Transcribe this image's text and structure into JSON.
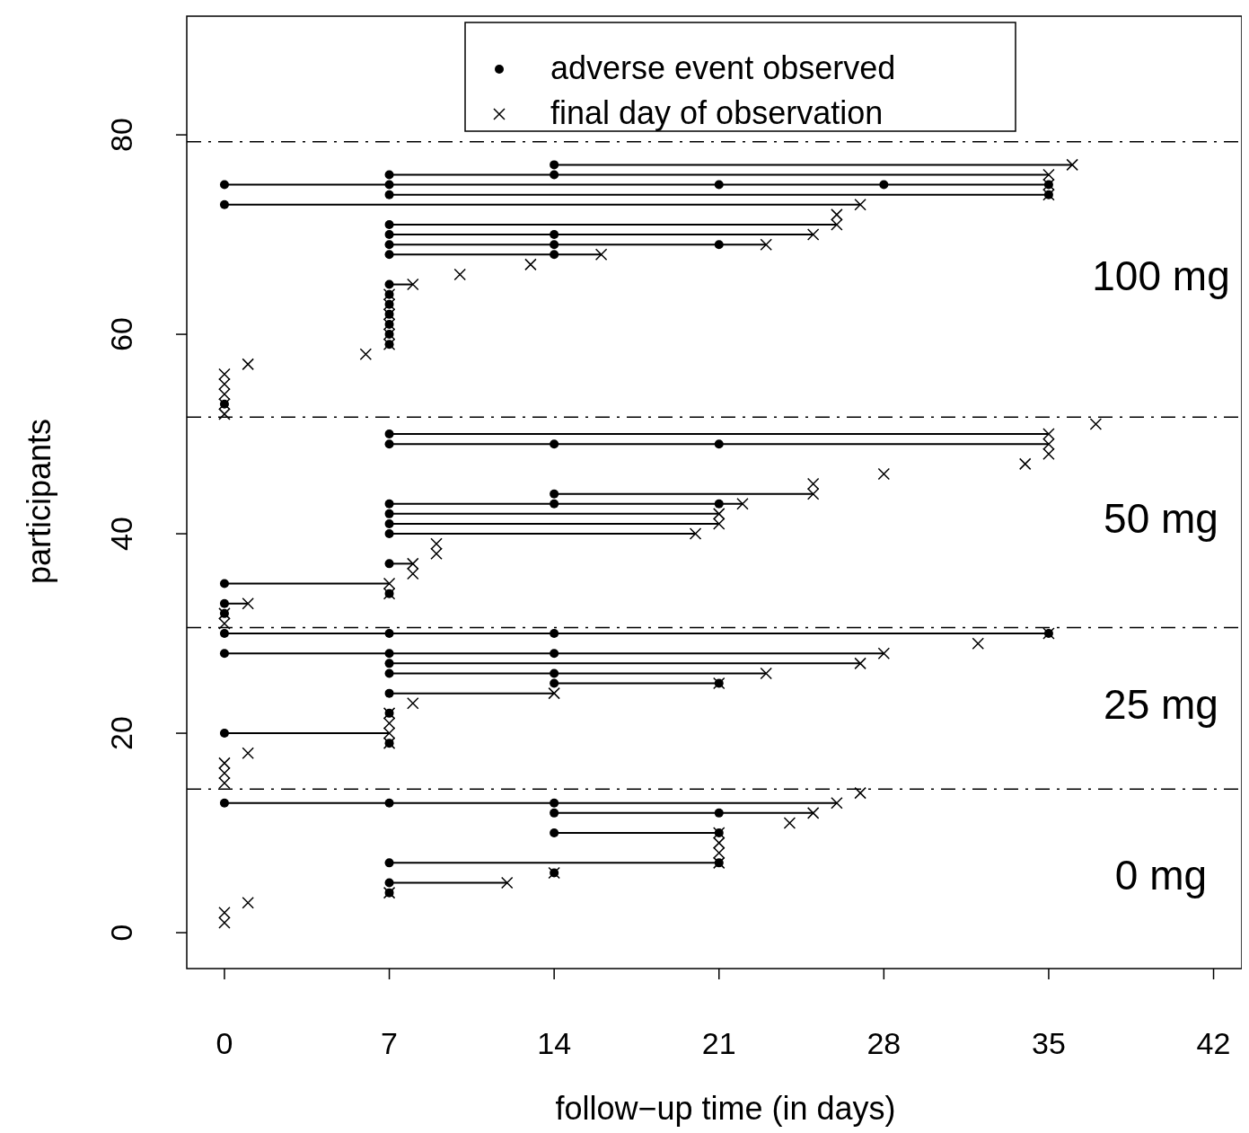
{
  "chart_data": {
    "type": "scatter",
    "xlabel": "follow−up time (in days)",
    "ylabel": "participants",
    "xlim": [
      -1.6,
      43.2
    ],
    "ylim": [
      -3.6,
      91.9
    ],
    "xticks": [
      0,
      7,
      14,
      21,
      28,
      35,
      42
    ],
    "yticks": [
      0,
      20,
      40,
      60,
      80
    ],
    "grid": false,
    "legend": "top",
    "series": [
      {
        "type": "line",
        "color": "#000000",
        "x": [
          7,
          12
        ],
        "values": [
          5,
          5
        ]
      },
      {
        "type": "line",
        "color": "#000000",
        "x": [
          7,
          21
        ],
        "values": [
          7,
          7
        ]
      },
      {
        "type": "line",
        "color": "#000000",
        "x": [
          14,
          21
        ],
        "values": [
          10,
          10
        ]
      },
      {
        "type": "line",
        "color": "#000000",
        "x": [
          14,
          25
        ],
        "values": [
          12,
          12
        ]
      },
      {
        "type": "line",
        "color": "#000000",
        "x": [
          0,
          26
        ],
        "values": [
          13,
          13
        ]
      },
      {
        "type": "line",
        "color": "#000000",
        "x": [
          0,
          7
        ],
        "values": [
          20,
          20
        ]
      },
      {
        "type": "line",
        "color": "#000000",
        "x": [
          7,
          14
        ],
        "values": [
          24,
          24
        ]
      },
      {
        "type": "line",
        "color": "#000000",
        "x": [
          14,
          21
        ],
        "values": [
          25,
          25
        ]
      },
      {
        "type": "line",
        "color": "#000000",
        "x": [
          7,
          23
        ],
        "values": [
          26,
          26
        ]
      },
      {
        "type": "line",
        "color": "#000000",
        "x": [
          7,
          27
        ],
        "values": [
          27,
          27
        ]
      },
      {
        "type": "line",
        "color": "#000000",
        "x": [
          0,
          28
        ],
        "values": [
          28,
          28
        ]
      },
      {
        "type": "line",
        "color": "#000000",
        "x": [
          0,
          35
        ],
        "values": [
          30,
          30
        ]
      },
      {
        "type": "line",
        "color": "#000000",
        "x": [
          0,
          1
        ],
        "values": [
          33,
          33
        ]
      },
      {
        "type": "line",
        "color": "#000000",
        "x": [
          0,
          7
        ],
        "values": [
          35,
          35
        ]
      },
      {
        "type": "line",
        "color": "#000000",
        "x": [
          7,
          8
        ],
        "values": [
          37,
          37
        ]
      },
      {
        "type": "line",
        "color": "#000000",
        "x": [
          7,
          20
        ],
        "values": [
          40,
          40
        ]
      },
      {
        "type": "line",
        "color": "#000000",
        "x": [
          7,
          21
        ],
        "values": [
          41,
          41
        ]
      },
      {
        "type": "line",
        "color": "#000000",
        "x": [
          7,
          21
        ],
        "values": [
          42,
          42
        ]
      },
      {
        "type": "line",
        "color": "#000000",
        "x": [
          7,
          22
        ],
        "values": [
          43,
          43
        ]
      },
      {
        "type": "line",
        "color": "#000000",
        "x": [
          14,
          25
        ],
        "values": [
          44,
          44
        ]
      },
      {
        "type": "line",
        "color": "#000000",
        "x": [
          7,
          35
        ],
        "values": [
          49,
          49
        ]
      },
      {
        "type": "line",
        "color": "#000000",
        "x": [
          7,
          35
        ],
        "values": [
          50,
          50
        ]
      },
      {
        "type": "line",
        "color": "#000000",
        "x": [
          7,
          8
        ],
        "values": [
          65,
          65
        ]
      },
      {
        "type": "line",
        "color": "#000000",
        "x": [
          7,
          16
        ],
        "values": [
          68,
          68
        ]
      },
      {
        "type": "line",
        "color": "#000000",
        "x": [
          7,
          23
        ],
        "values": [
          69,
          69
        ]
      },
      {
        "type": "line",
        "color": "#000000",
        "x": [
          7,
          25
        ],
        "values": [
          70,
          70
        ]
      },
      {
        "type": "line",
        "color": "#000000",
        "x": [
          7,
          26
        ],
        "values": [
          71,
          71
        ]
      },
      {
        "type": "line",
        "color": "#000000",
        "x": [
          0,
          27
        ],
        "values": [
          73,
          73
        ]
      },
      {
        "type": "line",
        "color": "#000000",
        "x": [
          7,
          35
        ],
        "values": [
          74,
          74
        ]
      },
      {
        "type": "line",
        "color": "#000000",
        "x": [
          0,
          35
        ],
        "values": [
          75,
          75
        ]
      },
      {
        "type": "line",
        "color": "#000000",
        "x": [
          7,
          35
        ],
        "values": [
          76,
          76
        ]
      },
      {
        "type": "line",
        "color": "#000000",
        "x": [
          14,
          36
        ],
        "values": [
          77,
          77
        ]
      },
      {
        "name": "adverse event observed",
        "color": "#000000",
        "marker": "circle",
        "x": [
          7,
          7,
          14,
          7,
          21,
          14,
          21,
          14,
          21,
          0,
          7,
          14,
          7,
          0,
          7,
          7,
          14,
          21,
          7,
          14,
          7,
          0,
          7,
          14,
          0,
          7,
          14,
          35,
          0,
          0,
          7,
          0,
          7,
          7,
          7,
          7,
          7,
          14,
          21,
          14,
          7,
          14,
          21,
          7,
          0,
          7,
          7,
          7,
          7,
          7,
          7,
          7,
          7,
          14,
          7,
          14,
          21,
          7,
          14,
          7,
          0,
          7,
          35,
          0,
          7,
          21,
          28,
          35,
          7,
          14,
          14
        ],
        "values": [
          4,
          5,
          6,
          7,
          7,
          10,
          10,
          12,
          12,
          13,
          13,
          13,
          19,
          20,
          22,
          24,
          25,
          25,
          26,
          26,
          27,
          28,
          28,
          28,
          30,
          30,
          30,
          30,
          32,
          33,
          34,
          35,
          37,
          40,
          41,
          42,
          43,
          43,
          43,
          44,
          49,
          49,
          49,
          50,
          53,
          59,
          60,
          61,
          62,
          63,
          64,
          65,
          68,
          68,
          69,
          69,
          69,
          70,
          70,
          71,
          73,
          74,
          74,
          75,
          75,
          75,
          75,
          75,
          76,
          76,
          77
        ]
      },
      {
        "name": "final day of observation",
        "color": "#000000",
        "marker": "cross",
        "x": [
          0,
          0,
          1,
          7,
          12,
          14,
          21,
          21,
          21,
          21,
          24,
          25,
          26,
          27,
          0,
          0,
          0,
          1,
          7,
          7,
          7,
          7,
          8,
          14,
          21,
          23,
          27,
          28,
          32,
          35,
          0,
          0,
          1,
          7,
          7,
          8,
          8,
          9,
          9,
          20,
          21,
          21,
          22,
          25,
          25,
          28,
          34,
          35,
          35,
          35,
          37,
          0,
          0,
          0,
          0,
          0,
          1,
          6,
          7,
          7,
          7,
          7,
          7,
          7,
          8,
          10,
          13,
          16,
          23,
          25,
          26,
          26,
          27,
          35,
          35,
          35,
          36
        ],
        "values": [
          1,
          2,
          3,
          4,
          5,
          6,
          7,
          8,
          9,
          10,
          11,
          12,
          13,
          14,
          15,
          16,
          17,
          18,
          19,
          20,
          21,
          22,
          23,
          24,
          25,
          26,
          27,
          28,
          29,
          30,
          31,
          32,
          33,
          34,
          35,
          36,
          37,
          38,
          39,
          40,
          41,
          42,
          43,
          44,
          45,
          46,
          47,
          48,
          49,
          50,
          51,
          52,
          53,
          54,
          55,
          56,
          57,
          58,
          59,
          60,
          61,
          62,
          63,
          64,
          65,
          66,
          67,
          68,
          69,
          70,
          71,
          72,
          73,
          74,
          75,
          76,
          77
        ]
      }
    ],
    "ref_lines": [
      {
        "axis": "y",
        "value": 14.4,
        "color": "#000000",
        "line_style": "dashed"
      },
      {
        "axis": "y",
        "value": 30.6,
        "color": "#000000",
        "line_style": "dashed"
      },
      {
        "axis": "y",
        "value": 51.7,
        "color": "#000000",
        "line_style": "dashed"
      },
      {
        "axis": "y",
        "value": 79.3,
        "color": "#000000",
        "line_style": "dashed"
      }
    ],
    "annotations": [
      "100 mg",
      "50 mg",
      "25 mg",
      "0 mg"
    ]
  }
}
